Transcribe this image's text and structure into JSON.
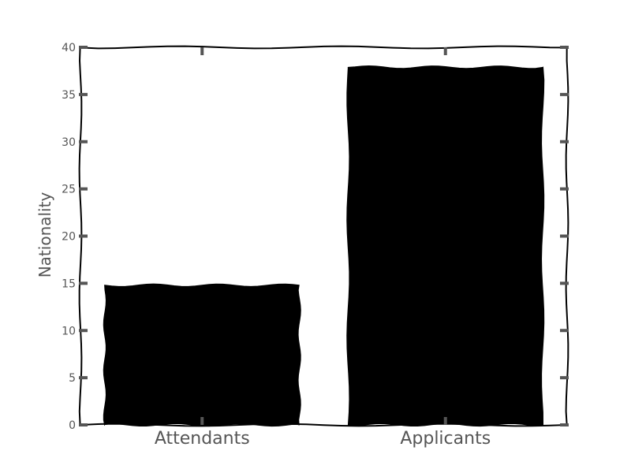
{
  "chart_data": {
    "type": "bar",
    "title": "",
    "xlabel": "",
    "ylabel": "Nationality",
    "categories": [
      "Attendants",
      "Applicants"
    ],
    "values": [
      14.8,
      37.9
    ],
    "ylim": [
      0,
      40
    ],
    "yticks": [
      0,
      5,
      10,
      15,
      20,
      25,
      30,
      35,
      40
    ],
    "grid": false,
    "style": "xkcd",
    "colors": {
      "bar": "#000000",
      "frame": "#000000",
      "tick": "#555555",
      "text": "#555555"
    }
  }
}
